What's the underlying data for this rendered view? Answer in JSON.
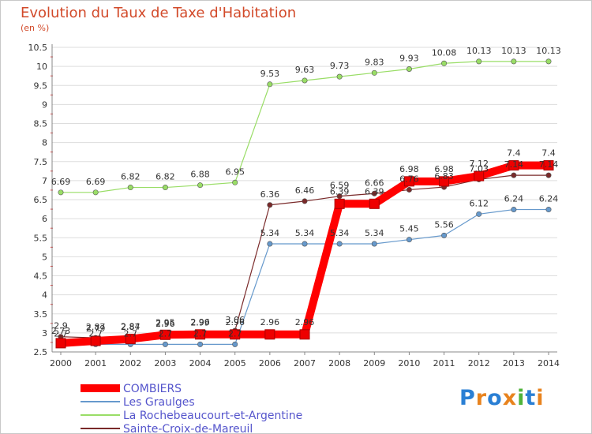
{
  "title": "Evolution du Taux de Taxe d'Habitation",
  "subtitle": "(en %)",
  "logo": "Proxiti",
  "chart_data": {
    "type": "line",
    "title": "Evolution du Taux de Taxe d'Habitation",
    "ylabel": "(en %)",
    "x": [
      "2000",
      "2001",
      "2002",
      "2003",
      "2004",
      "2005",
      "2006",
      "2007",
      "2008",
      "2009",
      "2010",
      "2011",
      "2012",
      "2013",
      "2014"
    ],
    "y_ticks": [
      "2.5",
      "3",
      "3.5",
      "4",
      "4.5",
      "5",
      "5.5",
      "6",
      "6.5",
      "7",
      "7.5",
      "8",
      "8.5",
      "9",
      "9.5",
      "10",
      "10.5"
    ],
    "ylim": [
      2.5,
      10.5
    ],
    "grid": "horizontal",
    "legend": "bottom-left",
    "series": [
      {
        "name": "COMBIERS",
        "color": "#ff0000",
        "values": [
          2.73,
          2.79,
          2.84,
          2.95,
          2.96,
          2.96,
          2.96,
          2.96,
          6.39,
          6.39,
          6.98,
          6.98,
          7.12,
          7.4,
          7.4
        ],
        "labels": [
          "2.73",
          "2.79",
          "2.84",
          "2.95",
          "2.96",
          "2.96",
          "2.96",
          "2.96",
          "6.39",
          "6.39",
          "6.98",
          "6.98",
          "7.12",
          "7.4",
          "7.4"
        ]
      },
      {
        "name": "Les Graulges",
        "color": "#6699cc",
        "values": [
          2.7,
          2.7,
          2.7,
          2.7,
          2.7,
          2.7,
          5.34,
          5.34,
          5.34,
          5.34,
          5.45,
          5.56,
          6.12,
          6.24,
          6.24
        ],
        "labels": [
          "2.7",
          "2.7",
          "2.7",
          "2.7",
          "2.7",
          "2.7",
          "5.34",
          "5.34",
          "5.34",
          "5.34",
          "5.45",
          "5.56",
          "6.12",
          "6.24",
          "6.24"
        ]
      },
      {
        "name": "La Rochebeaucourt-et-Argentine",
        "color": "#99dd66",
        "values": [
          6.69,
          6.69,
          6.82,
          6.82,
          6.88,
          6.95,
          9.53,
          9.63,
          9.73,
          9.83,
          9.93,
          10.08,
          10.13,
          10.13,
          10.13
        ],
        "labels": [
          "6.69",
          "6.69",
          "6.82",
          "6.82",
          "6.88",
          "6.95",
          "9.53",
          "9.63",
          "9.73",
          "9.83",
          "9.93",
          "10.08",
          "10.13",
          "10.13",
          "10.13"
        ]
      },
      {
        "name": "Sainte-Croix-de-Mareuil",
        "color": "#7a2a2a",
        "values": [
          2.9,
          2.87,
          2.87,
          2.96,
          2.99,
          3.06,
          6.36,
          6.46,
          6.59,
          6.66,
          6.76,
          6.83,
          7.03,
          7.14,
          7.14
        ],
        "labels": [
          "2.9",
          "2.87",
          "2.87",
          "2.96",
          "2.99",
          "3.06",
          "6.36",
          "6.46",
          "6.59",
          "6.66",
          "6.76",
          "6.83",
          "7.03",
          "7.14",
          "7.14"
        ]
      }
    ]
  }
}
